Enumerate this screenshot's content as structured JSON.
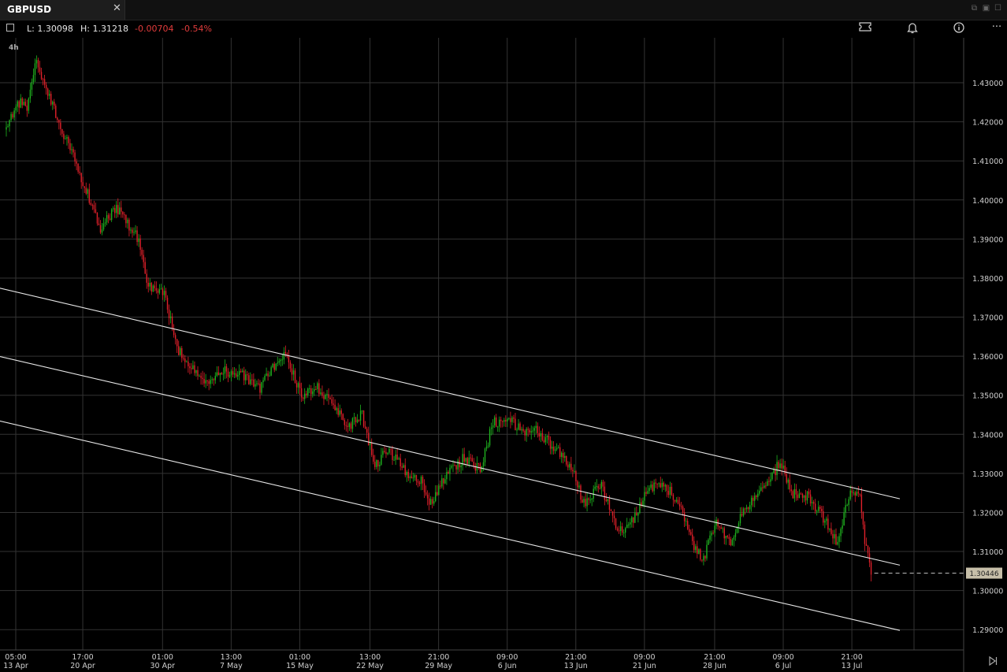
{
  "tab": {
    "title": "GBPUSD",
    "close": "✕"
  },
  "toolbar": {
    "low": "L: 1.30098",
    "high": "H: 1.31218",
    "change": "-0.00704",
    "change_pct": "-0.54%",
    "more": "···"
  },
  "colors": {
    "up": "#1fb41f",
    "down": "#e0202a",
    "grid": "#333",
    "text": "#d0d0d0",
    "neg": "#e23c3c"
  },
  "chart_data": {
    "type": "candlestick",
    "timeframe": "4h",
    "ylim": [
      1.2848,
      1.4415
    ],
    "y_ticks": [
      "1.43000",
      "1.42000",
      "1.41000",
      "1.40000",
      "1.39000",
      "1.38000",
      "1.37000",
      "1.36000",
      "1.35000",
      "1.34000",
      "1.33000",
      "1.32000",
      "1.31000",
      "1.30000",
      "1.29000"
    ],
    "x_ticks": [
      {
        "time": "05:00",
        "date": "13 Apr",
        "i": 0
      },
      {
        "time": "17:00",
        "date": "20 Apr",
        "i": 42
      },
      {
        "time": "01:00",
        "date": "30 Apr",
        "i": 92
      },
      {
        "time": "13:00",
        "date": "7 May",
        "i": 135
      },
      {
        "time": "01:00",
        "date": "15 May",
        "i": 178
      },
      {
        "time": "13:00",
        "date": "22 May",
        "i": 222
      },
      {
        "time": "21:00",
        "date": "29 May",
        "i": 265
      },
      {
        "time": "09:00",
        "date": "6 Jun",
        "i": 308
      },
      {
        "time": "21:00",
        "date": "13 Jun",
        "i": 351
      },
      {
        "time": "09:00",
        "date": "21 Jun",
        "i": 394
      },
      {
        "time": "21:00",
        "date": "28 Jun",
        "i": 438
      },
      {
        "time": "09:00",
        "date": "6 Jul",
        "i": 481
      },
      {
        "time": "21:00",
        "date": "13 Jul",
        "i": 524
      }
    ],
    "n_candles": 543,
    "anchors": [
      [
        0,
        1.418
      ],
      [
        8,
        1.425
      ],
      [
        14,
        1.424
      ],
      [
        20,
        1.436
      ],
      [
        26,
        1.428
      ],
      [
        36,
        1.418
      ],
      [
        46,
        1.408
      ],
      [
        60,
        1.393
      ],
      [
        70,
        1.398
      ],
      [
        84,
        1.39
      ],
      [
        90,
        1.378
      ],
      [
        100,
        1.376
      ],
      [
        108,
        1.362
      ],
      [
        116,
        1.358
      ],
      [
        126,
        1.353
      ],
      [
        138,
        1.356
      ],
      [
        150,
        1.355
      ],
      [
        160,
        1.352
      ],
      [
        170,
        1.358
      ],
      [
        176,
        1.36
      ],
      [
        186,
        1.35
      ],
      [
        196,
        1.352
      ],
      [
        206,
        1.347
      ],
      [
        216,
        1.342
      ],
      [
        224,
        1.345
      ],
      [
        232,
        1.332
      ],
      [
        240,
        1.336
      ],
      [
        252,
        1.33
      ],
      [
        262,
        1.328
      ],
      [
        266,
        1.322
      ],
      [
        276,
        1.329
      ],
      [
        288,
        1.334
      ],
      [
        298,
        1.331
      ],
      [
        306,
        1.343
      ],
      [
        316,
        1.344
      ],
      [
        326,
        1.34
      ],
      [
        334,
        1.341
      ],
      [
        346,
        1.336
      ],
      [
        358,
        1.329
      ],
      [
        362,
        1.322
      ],
      [
        374,
        1.327
      ],
      [
        384,
        1.315
      ],
      [
        394,
        1.318
      ],
      [
        402,
        1.326
      ],
      [
        414,
        1.327
      ],
      [
        424,
        1.321
      ],
      [
        432,
        1.311
      ],
      [
        438,
        1.308
      ],
      [
        446,
        1.318
      ],
      [
        454,
        1.312
      ],
      [
        464,
        1.321
      ],
      [
        476,
        1.326
      ],
      [
        486,
        1.333
      ],
      [
        494,
        1.325
      ],
      [
        504,
        1.324
      ],
      [
        514,
        1.318
      ],
      [
        522,
        1.312
      ],
      [
        530,
        1.326
      ],
      [
        536,
        1.324
      ],
      [
        539,
        1.312
      ],
      [
        543,
        1.3045
      ]
    ],
    "last_price": "1.30446",
    "channel_lines": [
      {
        "x1": -5,
        "y1": 1.3775,
        "x2": 560,
        "y2": 1.3235
      },
      {
        "x1": -5,
        "y1": 1.36,
        "x2": 560,
        "y2": 1.3065
      },
      {
        "x1": -5,
        "y1": 1.3435,
        "x2": 560,
        "y2": 1.2898
      }
    ]
  }
}
